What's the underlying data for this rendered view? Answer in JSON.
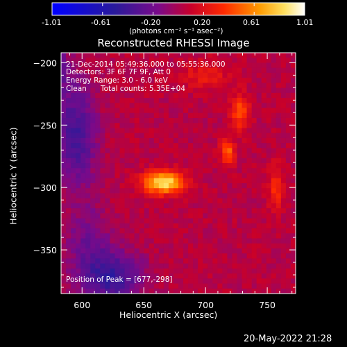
{
  "colorbar": {
    "ticks": [
      "-1.01",
      "-0.61",
      "-0.20",
      "0.20",
      "0.61",
      "1.01"
    ],
    "unit_label": "(photons cm⁻² s⁻¹ asec⁻²)"
  },
  "chart_data": {
    "type": "heatmap",
    "title": "Reconstructed RHESSI Image",
    "xlabel": "Heliocentric X (arcsec)",
    "ylabel": "Heliocentric Y (arcsec)",
    "xlim": [
      583,
      773
    ],
    "ylim": [
      -385,
      -192
    ],
    "xticks": [
      600,
      650,
      700,
      750
    ],
    "yticks": [
      -200,
      -250,
      -300,
      -350
    ],
    "color_range": [
      -1.01,
      1.01
    ],
    "peak": [
      677,
      -298
    ],
    "sources": [
      {
        "x": 666,
        "y": -296,
        "intensity": 1.0
      },
      {
        "x": 718,
        "y": -272,
        "intensity": 0.75
      },
      {
        "x": 728,
        "y": -238,
        "intensity": 0.7
      },
      {
        "x": 757,
        "y": -300,
        "intensity": 0.6
      }
    ]
  },
  "annotations": {
    "time_range": "21-Dec-2014 05:49:36.000 to 05:55:36.000",
    "detectors": "Detectors: 3F 6F 7F 9F, Att 0",
    "energy": "Energy Range: 3.0 - 6.0 keV",
    "method": "Clean",
    "counts": "Total counts: 5.35E+04",
    "peak_text": "Position of Peak = [677,-298]"
  },
  "footer": {
    "timestamp": "20-May-2022 21:28"
  }
}
